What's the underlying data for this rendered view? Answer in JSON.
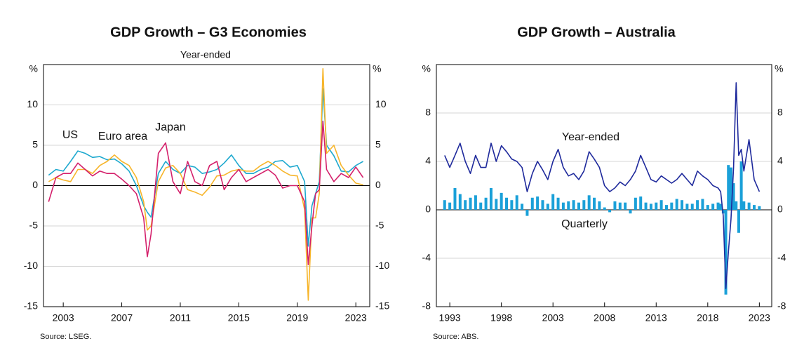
{
  "chart_data": [
    {
      "type": "line",
      "title": "GDP Growth – G3 Economies",
      "subtitle": "Year-ended",
      "ylabel": "%",
      "source": "Source:   LSEG.",
      "xlim": [
        2002.15,
        2024.45
      ],
      "xticks": [
        {
          "value": 2003.5,
          "label": "2003"
        },
        {
          "value": 2007.5,
          "label": "2007"
        },
        {
          "value": 2011.5,
          "label": "2011"
        },
        {
          "value": 2015.5,
          "label": "2015"
        },
        {
          "value": 2019.5,
          "label": "2019"
        },
        {
          "value": 2023.5,
          "label": "2023"
        }
      ],
      "ylim": [
        -15,
        15
      ],
      "yticks": [
        -15,
        -10,
        -5,
        0,
        5,
        10
      ],
      "grid": true,
      "x": [
        2002.5,
        2003,
        2003.5,
        2004,
        2004.5,
        2005,
        2005.5,
        2006,
        2006.5,
        2007,
        2007.5,
        2008,
        2008.5,
        2009,
        2009.25,
        2009.5,
        2010,
        2010.5,
        2011,
        2011.5,
        2012,
        2012.5,
        2013,
        2013.5,
        2014,
        2014.5,
        2015,
        2015.5,
        2016,
        2016.5,
        2017,
        2017.5,
        2018,
        2018.5,
        2019,
        2019.5,
        2020,
        2020.25,
        2020.5,
        2020.75,
        2021,
        2021.25,
        2021.5,
        2022,
        2022.5,
        2023,
        2023.5,
        2024
      ],
      "series": [
        {
          "name": "US",
          "color": "#1ea9cf",
          "values": [
            1.3,
            2.0,
            1.8,
            3.0,
            4.3,
            4.0,
            3.5,
            3.6,
            3.2,
            3.3,
            2.7,
            1.8,
            0.0,
            -2.5,
            -3.3,
            -3.9,
            1.5,
            3.0,
            2.0,
            1.5,
            2.5,
            2.3,
            1.5,
            1.7,
            2.0,
            2.8,
            3.8,
            2.5,
            1.5,
            1.5,
            2.0,
            2.3,
            3.0,
            3.1,
            2.3,
            2.5,
            0.5,
            -7.5,
            -2.5,
            -1.0,
            0.5,
            12.0,
            5.0,
            3.7,
            1.8,
            1.7,
            2.5,
            3.0
          ]
        },
        {
          "name": "Euro area",
          "color": "#f7b52a",
          "values": [
            0.5,
            1.0,
            0.7,
            0.5,
            2.0,
            2.0,
            1.5,
            2.5,
            3.0,
            3.8,
            3.0,
            2.5,
            1.0,
            -2.0,
            -5.5,
            -5.0,
            0.5,
            2.2,
            2.5,
            1.5,
            -0.5,
            -0.8,
            -1.2,
            -0.2,
            1.2,
            1.3,
            1.8,
            2.0,
            1.8,
            1.8,
            2.5,
            3.0,
            2.5,
            1.8,
            1.3,
            1.2,
            -3.0,
            -14.2,
            -4.0,
            -4.0,
            -1.0,
            14.5,
            4.0,
            5.0,
            2.5,
            1.3,
            0.3,
            0.1
          ]
        },
        {
          "name": "Japan",
          "color": "#d4206b",
          "values": [
            -2.0,
            1.0,
            1.5,
            1.5,
            2.8,
            2.0,
            1.2,
            1.8,
            1.5,
            1.5,
            0.8,
            0.0,
            -1.0,
            -4.0,
            -8.8,
            -6.0,
            4.0,
            5.3,
            0.5,
            -1.0,
            3.0,
            0.5,
            0.0,
            2.5,
            3.0,
            -0.5,
            1.0,
            2.0,
            0.5,
            1.0,
            1.5,
            2.0,
            1.3,
            -0.3,
            0.0,
            0.0,
            -2.0,
            -9.8,
            -5.0,
            -1.0,
            -0.5,
            8.0,
            2.0,
            0.5,
            1.5,
            1.0,
            2.3,
            1.0
          ]
        }
      ]
    },
    {
      "type": "combo",
      "title": "GDP Growth – Australia",
      "ylabel": "%",
      "source": "Source:   ABS.",
      "xlim": [
        1992.2,
        2024.7
      ],
      "xticks": [
        {
          "value": 1993.5,
          "label": "1993"
        },
        {
          "value": 1998.5,
          "label": "1998"
        },
        {
          "value": 2003.5,
          "label": "2003"
        },
        {
          "value": 2008.5,
          "label": "2008"
        },
        {
          "value": 2013.5,
          "label": "2013"
        },
        {
          "value": 2018.5,
          "label": "2018"
        },
        {
          "value": 2023.5,
          "label": "2023"
        }
      ],
      "ylim": [
        -8,
        12
      ],
      "yticks": [
        -8,
        -4,
        0,
        4,
        8
      ],
      "grid": true,
      "x": [
        1993,
        1993.5,
        1994,
        1994.5,
        1995,
        1995.5,
        1996,
        1996.5,
        1997,
        1997.5,
        1998,
        1998.5,
        1999,
        1999.5,
        2000,
        2000.5,
        2001,
        2001.5,
        2002,
        2002.5,
        2003,
        2003.5,
        2004,
        2004.5,
        2005,
        2005.5,
        2006,
        2006.5,
        2007,
        2007.5,
        2008,
        2008.5,
        2009,
        2009.5,
        2010,
        2010.5,
        2011,
        2011.5,
        2012,
        2012.5,
        2013,
        2013.5,
        2014,
        2014.5,
        2015,
        2015.5,
        2016,
        2016.5,
        2017,
        2017.5,
        2018,
        2018.5,
        2019,
        2019.5,
        2019.75,
        2020,
        2020.25,
        2020.5,
        2020.75,
        2021,
        2021.25,
        2021.5,
        2021.75,
        2022,
        2022.5,
        2023,
        2023.5
      ],
      "series": [
        {
          "name": "Year-ended",
          "type": "line",
          "color": "#1f2a9c",
          "values": [
            4.5,
            3.5,
            4.5,
            5.5,
            4.0,
            3.0,
            4.5,
            3.5,
            3.5,
            5.5,
            4.0,
            5.3,
            4.8,
            4.2,
            4.0,
            3.5,
            1.5,
            3.0,
            4.0,
            3.3,
            2.5,
            4.0,
            5.0,
            3.5,
            2.8,
            3.0,
            2.5,
            3.2,
            4.8,
            4.2,
            3.5,
            2.0,
            1.5,
            1.8,
            2.3,
            2.0,
            2.5,
            3.2,
            4.5,
            3.5,
            2.5,
            2.3,
            2.8,
            2.5,
            2.2,
            2.5,
            3.0,
            2.5,
            2.0,
            3.2,
            2.8,
            2.5,
            2.0,
            1.8,
            1.5,
            -0.5,
            -6.5,
            -3.5,
            -0.8,
            3.5,
            10.5,
            4.5,
            5.0,
            3.2,
            5.8,
            2.5,
            1.5
          ]
        },
        {
          "name": "Quarterly",
          "type": "bar",
          "color": "#1aa0d8",
          "values": [
            0.8,
            0.6,
            1.8,
            1.3,
            0.8,
            1.0,
            1.2,
            0.6,
            1.0,
            1.8,
            0.9,
            1.4,
            1.0,
            0.8,
            1.2,
            0.5,
            -0.5,
            1.0,
            1.1,
            0.8,
            0.5,
            1.3,
            1.0,
            0.6,
            0.7,
            0.8,
            0.6,
            0.8,
            1.2,
            1.0,
            0.7,
            0.2,
            -0.2,
            0.7,
            0.6,
            0.6,
            -0.3,
            1.0,
            1.1,
            0.6,
            0.5,
            0.6,
            0.8,
            0.4,
            0.6,
            0.9,
            0.8,
            0.5,
            0.5,
            0.8,
            0.9,
            0.4,
            0.5,
            0.6,
            0.5,
            -0.3,
            -7.0,
            3.7,
            3.5,
            2.2,
            0.7,
            -1.9,
            4.0,
            0.7,
            0.6,
            0.4,
            0.3
          ]
        }
      ]
    }
  ]
}
